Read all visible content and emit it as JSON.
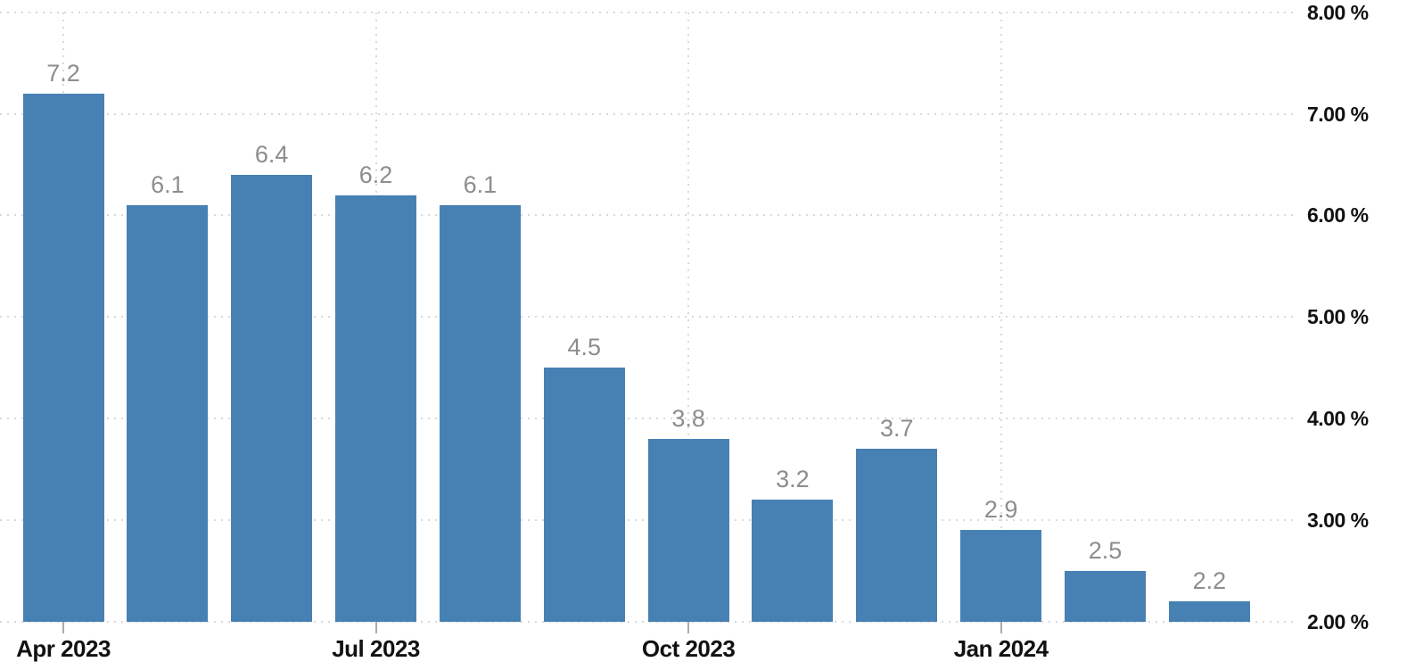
{
  "chart_data": {
    "type": "bar",
    "title": "",
    "values": [
      7.2,
      6.1,
      6.4,
      6.2,
      6.1,
      4.5,
      3.8,
      3.2,
      3.7,
      2.9,
      2.5,
      2.2
    ],
    "bar_value_labels": [
      "7.2",
      "6.1",
      "6.4",
      "6.2",
      "6.1",
      "4.5",
      "3.8",
      "3.2",
      "3.7",
      "2.9",
      "2.5",
      "2.2"
    ],
    "x_ticks": [
      {
        "label": "Apr 2023",
        "bar_index": 0
      },
      {
        "label": "Jul 2023",
        "bar_index": 3
      },
      {
        "label": "Oct 2023",
        "bar_index": 6
      },
      {
        "label": "Jan 2024",
        "bar_index": 9
      }
    ],
    "y_axis": {
      "side": "right",
      "min": 2,
      "max": 8,
      "ticks": [
        {
          "value": 8,
          "label": "8.00 %"
        },
        {
          "value": 7,
          "label": "7.00 %"
        },
        {
          "value": 6,
          "label": "6.00 %"
        },
        {
          "value": 5,
          "label": "5.00 %"
        },
        {
          "value": 4,
          "label": "4.00 %"
        },
        {
          "value": 3,
          "label": "3.00 %"
        },
        {
          "value": 2,
          "label": "2.00 %"
        }
      ]
    },
    "grid": {
      "horizontal": true,
      "vertical_at_x_ticks": true,
      "style": "dotted",
      "baseline_value": 2
    },
    "legend": null,
    "colors": {
      "bar": "#4781b3",
      "value_label": "#8d8d8d",
      "axis_label": "#111111",
      "gridline": "#d9d9d9",
      "tick_mark": "#ababab",
      "background": "#ffffff"
    }
  }
}
